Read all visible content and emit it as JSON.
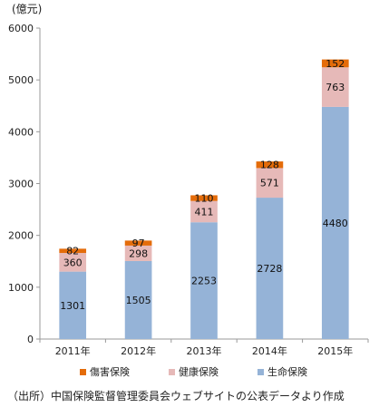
{
  "unit_label": "(億元)",
  "source_note": "（出所）中国保険監督管理委員会ウェブサイトの公表データより作成",
  "chart_data": {
    "type": "bar",
    "stacked": true,
    "categories": [
      "2011年",
      "2012年",
      "2013年",
      "2014年",
      "2015年"
    ],
    "ylim": [
      0,
      6000
    ],
    "yticks": [
      0,
      1000,
      2000,
      3000,
      4000,
      5000,
      6000
    ],
    "grid": false,
    "legend_position": "bottom",
    "series": [
      {
        "name": "生命保険",
        "values": [
          1301,
          1505,
          2253,
          2728,
          4480
        ],
        "color": "#95b3d7"
      },
      {
        "name": "健康保険",
        "values": [
          360,
          298,
          411,
          571,
          763
        ],
        "color": "#e6b9b8"
      },
      {
        "name": "傷害保険",
        "values": [
          82,
          97,
          110,
          128,
          152
        ],
        "color": "#e46c0a"
      }
    ]
  }
}
